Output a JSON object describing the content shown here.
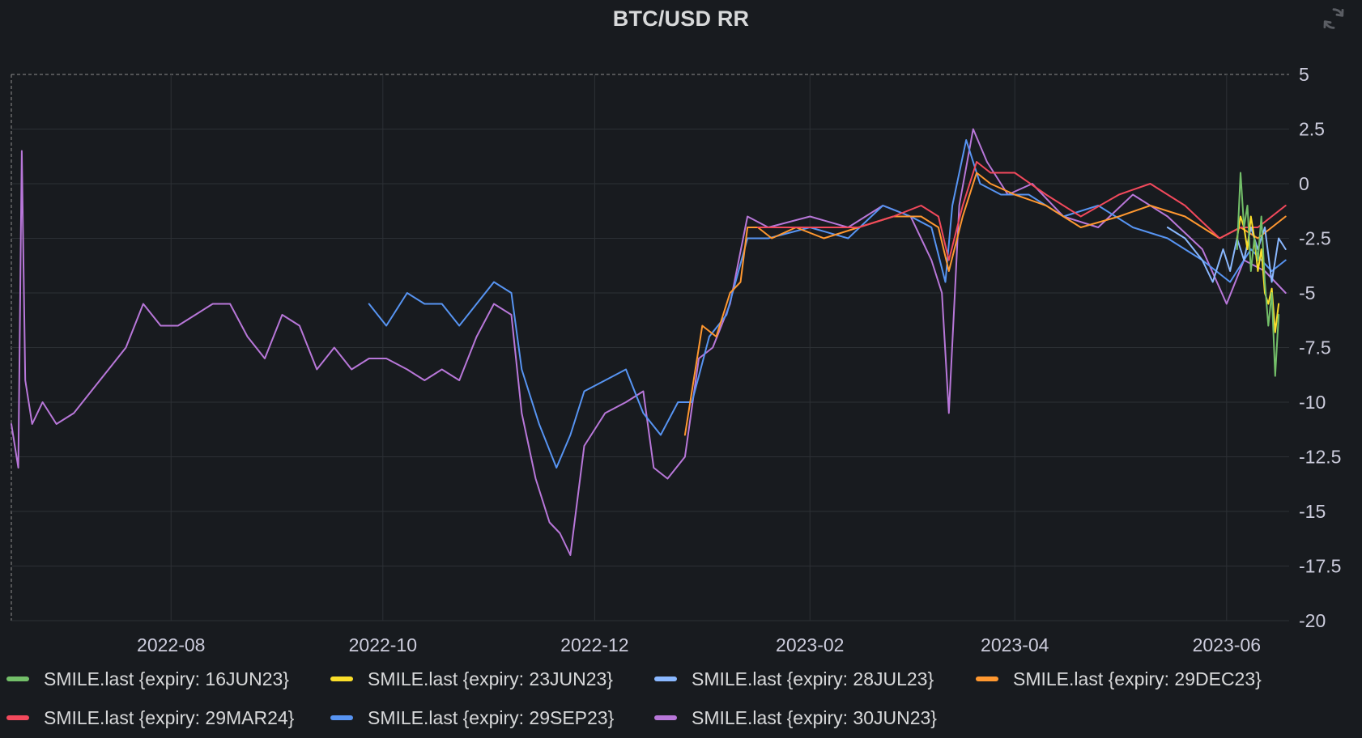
{
  "panel": {
    "title": "BTC/USD RR",
    "refresh_icon": "refresh-icon"
  },
  "colors": {
    "background": "#181b1f",
    "grid": "#2c3035",
    "text": "#ccccdc"
  },
  "chart_data": {
    "type": "line",
    "title": "BTC/USD RR",
    "xlabel": "",
    "ylabel": "",
    "x_ticks": [
      "2022-08",
      "2022-10",
      "2022-12",
      "2023-02",
      "2023-04",
      "2023-06"
    ],
    "y_ticks": [
      5,
      2.5,
      0,
      -2.5,
      -5,
      -7.5,
      -10,
      -12.5,
      -15,
      -17.5,
      -20
    ],
    "ylim": [
      -20,
      5
    ],
    "xlim": [
      "2022-06-16",
      "2023-06-19"
    ],
    "grid": true,
    "legend_position": "bottom",
    "series": [
      {
        "name": "SMILE.last {expiry: 16JUN23}",
        "color": "#73bf69",
        "x": [
          "2023-06-04",
          "2023-06-05",
          "2023-06-06",
          "2023-06-07",
          "2023-06-08",
          "2023-06-09",
          "2023-06-10",
          "2023-06-11",
          "2023-06-12",
          "2023-06-13",
          "2023-06-14",
          "2023-06-15",
          "2023-06-16"
        ],
        "y": [
          -3.0,
          0.5,
          -2.0,
          -1.0,
          -4.0,
          -2.5,
          -3.5,
          -1.5,
          -4.5,
          -6.5,
          -5.0,
          -8.8,
          -6.0
        ]
      },
      {
        "name": "SMILE.last {expiry: 23JUN23}",
        "color": "#fade2a",
        "x": [
          "2023-06-04",
          "2023-06-05",
          "2023-06-06",
          "2023-06-07",
          "2023-06-08",
          "2023-06-09",
          "2023-06-10",
          "2023-06-11",
          "2023-06-12",
          "2023-06-13",
          "2023-06-14",
          "2023-06-15",
          "2023-06-16"
        ],
        "y": [
          -2.5,
          -1.5,
          -2.0,
          -3.0,
          -1.5,
          -2.5,
          -4.0,
          -3.0,
          -5.0,
          -5.5,
          -4.8,
          -6.8,
          -5.5
        ]
      },
      {
        "name": "SMILE.last {expiry: 28JUL23}",
        "color": "#8ab8ff",
        "x": [
          "2023-05-15",
          "2023-05-20",
          "2023-05-25",
          "2023-05-28",
          "2023-05-31",
          "2023-06-02",
          "2023-06-04",
          "2023-06-06",
          "2023-06-08",
          "2023-06-10",
          "2023-06-12",
          "2023-06-14",
          "2023-06-16",
          "2023-06-18"
        ],
        "y": [
          -2.0,
          -2.5,
          -3.5,
          -4.5,
          -3.0,
          -4.0,
          -2.5,
          -3.5,
          -2.0,
          -3.0,
          -2.0,
          -4.5,
          -2.5,
          -3.0
        ]
      },
      {
        "name": "SMILE.last {expiry: 29DEC23}",
        "color": "#ff9830",
        "x": [
          "2022-12-27",
          "2023-01-01",
          "2023-01-05",
          "2023-01-09",
          "2023-01-12",
          "2023-01-14",
          "2023-01-17",
          "2023-01-21",
          "2023-01-28",
          "2023-02-05",
          "2023-02-15",
          "2023-02-25",
          "2023-03-05",
          "2023-03-10",
          "2023-03-13",
          "2023-03-17",
          "2023-03-21",
          "2023-03-25",
          "2023-04-01",
          "2023-04-10",
          "2023-04-20",
          "2023-05-01",
          "2023-05-10",
          "2023-05-20",
          "2023-05-30",
          "2023-06-05",
          "2023-06-10",
          "2023-06-18"
        ],
        "y": [
          -11.5,
          -6.5,
          -7.0,
          -5.0,
          -4.5,
          -2.0,
          -2.0,
          -2.5,
          -2.0,
          -2.5,
          -2.0,
          -1.5,
          -1.5,
          -2.0,
          -4.0,
          -1.5,
          0.5,
          0.0,
          -0.5,
          -1.0,
          -2.0,
          -1.5,
          -1.0,
          -1.5,
          -2.5,
          -2.0,
          -2.5,
          -1.5
        ]
      },
      {
        "name": "SMILE.last {expiry: 29MAR24}",
        "color": "#f2495c",
        "x": [
          "2023-01-17",
          "2023-01-25",
          "2023-02-05",
          "2023-02-15",
          "2023-02-25",
          "2023-03-05",
          "2023-03-10",
          "2023-03-13",
          "2023-03-17",
          "2023-03-21",
          "2023-03-25",
          "2023-04-01",
          "2023-04-10",
          "2023-04-20",
          "2023-05-01",
          "2023-05-10",
          "2023-05-20",
          "2023-05-30",
          "2023-06-05",
          "2023-06-10",
          "2023-06-18"
        ],
        "y": [
          -2.0,
          -2.0,
          -2.0,
          -2.0,
          -1.5,
          -1.0,
          -1.5,
          -3.5,
          -1.0,
          1.0,
          0.5,
          0.5,
          -0.5,
          -1.5,
          -0.5,
          0.0,
          -1.0,
          -2.5,
          -2.0,
          -2.0,
          -1.0
        ]
      },
      {
        "name": "SMILE.last {expiry: 29SEP23}",
        "color": "#5794f2",
        "x": [
          "2022-09-27",
          "2022-10-02",
          "2022-10-08",
          "2022-10-13",
          "2022-10-18",
          "2022-10-23",
          "2022-10-28",
          "2022-11-02",
          "2022-11-07",
          "2022-11-10",
          "2022-11-15",
          "2022-11-20",
          "2022-11-24",
          "2022-11-28",
          "2022-12-04",
          "2022-12-10",
          "2022-12-15",
          "2022-12-20",
          "2022-12-25",
          "2022-12-29",
          "2023-01-03",
          "2023-01-08",
          "2023-01-14",
          "2023-01-20",
          "2023-02-01",
          "2023-02-12",
          "2023-02-22",
          "2023-03-02",
          "2023-03-08",
          "2023-03-12",
          "2023-03-14",
          "2023-03-18",
          "2023-03-22",
          "2023-03-28",
          "2023-04-05",
          "2023-04-15",
          "2023-04-25",
          "2023-05-05",
          "2023-05-15",
          "2023-05-25",
          "2023-06-02",
          "2023-06-08",
          "2023-06-14",
          "2023-06-18"
        ],
        "y": [
          -5.5,
          -6.5,
          -5.0,
          -5.5,
          -5.5,
          -6.5,
          -5.5,
          -4.5,
          -5.0,
          -8.5,
          -11.0,
          -13.0,
          -11.5,
          -9.5,
          -9.0,
          -8.5,
          -10.5,
          -11.5,
          -10.0,
          -10.0,
          -7.0,
          -6.0,
          -2.5,
          -2.5,
          -2.0,
          -2.5,
          -1.0,
          -1.5,
          -2.0,
          -4.5,
          -1.0,
          2.0,
          0.0,
          -0.5,
          -0.5,
          -1.5,
          -1.0,
          -2.0,
          -2.5,
          -3.5,
          -4.5,
          -3.0,
          -4.0,
          -3.5
        ]
      },
      {
        "name": "SMILE.last {expiry: 30JUN23}",
        "color": "#b877d9",
        "x": [
          "2022-06-16",
          "2022-06-18",
          "2022-06-19",
          "2022-06-20",
          "2022-06-22",
          "2022-06-25",
          "2022-06-29",
          "2022-07-04",
          "2022-07-09",
          "2022-07-14",
          "2022-07-19",
          "2022-07-24",
          "2022-07-29",
          "2022-08-03",
          "2022-08-08",
          "2022-08-13",
          "2022-08-18",
          "2022-08-23",
          "2022-08-28",
          "2022-09-02",
          "2022-09-07",
          "2022-09-12",
          "2022-09-17",
          "2022-09-22",
          "2022-09-27",
          "2022-10-02",
          "2022-10-08",
          "2022-10-13",
          "2022-10-18",
          "2022-10-23",
          "2022-10-28",
          "2022-11-02",
          "2022-11-07",
          "2022-11-10",
          "2022-11-14",
          "2022-11-18",
          "2022-11-21",
          "2022-11-24",
          "2022-11-28",
          "2022-12-04",
          "2022-12-10",
          "2022-12-15",
          "2022-12-18",
          "2022-12-22",
          "2022-12-27",
          "2022-12-31",
          "2023-01-04",
          "2023-01-09",
          "2023-01-14",
          "2023-01-20",
          "2023-02-01",
          "2023-02-12",
          "2023-02-22",
          "2023-03-02",
          "2023-03-08",
          "2023-03-11",
          "2023-03-13",
          "2023-03-16",
          "2023-03-20",
          "2023-03-24",
          "2023-03-30",
          "2023-04-06",
          "2023-04-15",
          "2023-04-25",
          "2023-05-05",
          "2023-05-15",
          "2023-05-25",
          "2023-06-01",
          "2023-06-06",
          "2023-06-12",
          "2023-06-18"
        ],
        "y": [
          -11.0,
          -13.0,
          1.5,
          -9.0,
          -11.0,
          -10.0,
          -11.0,
          -10.5,
          -9.5,
          -8.5,
          -7.5,
          -5.5,
          -6.5,
          -6.5,
          -6.0,
          -5.5,
          -5.5,
          -7.0,
          -8.0,
          -6.0,
          -6.5,
          -8.5,
          -7.5,
          -8.5,
          -8.0,
          -8.0,
          -8.5,
          -9.0,
          -8.5,
          -9.0,
          -7.0,
          -5.5,
          -6.0,
          -10.5,
          -13.5,
          -15.5,
          -16.0,
          -17.0,
          -12.0,
          -10.5,
          -10.0,
          -9.5,
          -13.0,
          -13.5,
          -12.5,
          -8.0,
          -7.5,
          -5.5,
          -1.5,
          -2.0,
          -1.5,
          -2.0,
          -1.0,
          -1.5,
          -3.5,
          -5.0,
          -10.5,
          -1.0,
          2.5,
          1.0,
          -0.5,
          0.0,
          -1.5,
          -2.0,
          -0.5,
          -1.5,
          -3.0,
          -5.5,
          -3.5,
          -4.0,
          -5.0
        ]
      }
    ]
  },
  "legend": {
    "items": [
      {
        "label": "SMILE.last {expiry: 16JUN23}",
        "color": "#73bf69"
      },
      {
        "label": "SMILE.last {expiry: 23JUN23}",
        "color": "#fade2a"
      },
      {
        "label": "SMILE.last {expiry: 28JUL23}",
        "color": "#8ab8ff"
      },
      {
        "label": "SMILE.last {expiry: 29DEC23}",
        "color": "#ff9830"
      },
      {
        "label": "SMILE.last {expiry: 29MAR24}",
        "color": "#f2495c"
      },
      {
        "label": "SMILE.last {expiry: 29SEP23}",
        "color": "#5794f2"
      },
      {
        "label": "SMILE.last {expiry: 30JUN23}",
        "color": "#b877d9"
      }
    ]
  }
}
